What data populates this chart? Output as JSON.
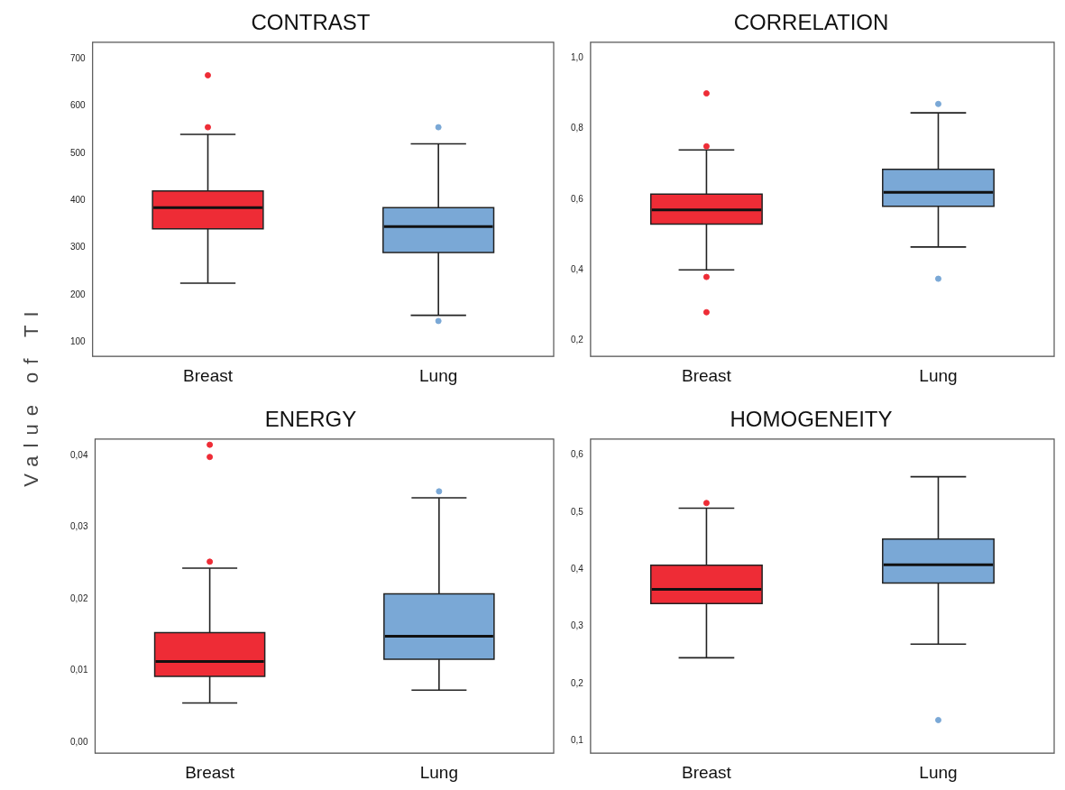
{
  "chart_data": [
    {
      "type": "box",
      "title": "CONTRAST",
      "ylabel": "Value of TI",
      "categories": [
        "Breast",
        "Lung"
      ],
      "colors": [
        "#ee2c36",
        "#7aa8d6"
      ],
      "ylim": [
        70,
        735
      ],
      "yticks": [
        100,
        200,
        300,
        400,
        500,
        600,
        700
      ],
      "grid": false,
      "legend": false,
      "boxes": [
        {
          "low": 225,
          "q1": 340,
          "median": 385,
          "q3": 420,
          "high": 540,
          "outliers": [
            555,
            665
          ]
        },
        {
          "low": 157,
          "q1": 290,
          "median": 345,
          "q3": 385,
          "high": 520,
          "outliers": [
            555,
            145
          ]
        }
      ]
    },
    {
      "type": "box",
      "title": "CORRELATION",
      "categories": [
        "Breast",
        "Lung"
      ],
      "colors": [
        "#ee2c36",
        "#7aa8d6"
      ],
      "ylim": [
        0.155,
        1.045
      ],
      "yticks": [
        {
          "value": 0.2,
          "label": "0,2"
        },
        {
          "value": 0.4,
          "label": "0,4"
        },
        {
          "value": 0.6,
          "label": "0,6"
        },
        {
          "value": 0.8,
          "label": "0,8"
        },
        {
          "value": 1.0,
          "label": "1,0"
        }
      ],
      "grid": false,
      "legend": false,
      "boxes": [
        {
          "low": 0.4,
          "q1": 0.53,
          "median": 0.57,
          "q3": 0.615,
          "high": 0.74,
          "outliers": [
            0.9,
            0.75,
            0.38,
            0.28
          ]
        },
        {
          "low": 0.465,
          "q1": 0.58,
          "median": 0.62,
          "q3": 0.685,
          "high": 0.845,
          "outliers": [
            0.87,
            0.375
          ]
        }
      ]
    },
    {
      "type": "box",
      "title": "ENERGY",
      "categories": [
        "Breast",
        "Lung"
      ],
      "colors": [
        "#ee2c36",
        "#7aa8d6"
      ],
      "ylim": [
        -0.0015,
        0.0423
      ],
      "yticks": [
        {
          "value": 0,
          "label": "0,00"
        },
        {
          "value": 0.01,
          "label": "0,01"
        },
        {
          "value": 0.02,
          "label": "0,02"
        },
        {
          "value": 0.03,
          "label": "0,03"
        },
        {
          "value": 0.04,
          "label": "0,04"
        }
      ],
      "grid": false,
      "legend": false,
      "boxes": [
        {
          "low": 0.0055,
          "q1": 0.0092,
          "median": 0.0113,
          "q3": 0.0153,
          "high": 0.0243,
          "outliers": [
            0.0415,
            0.0398,
            0.0252
          ]
        },
        {
          "low": 0.0073,
          "q1": 0.0116,
          "median": 0.0148,
          "q3": 0.0207,
          "high": 0.0341,
          "outliers": [
            0.035
          ]
        }
      ]
    },
    {
      "type": "box",
      "title": "HOMOGENEITY",
      "categories": [
        "Breast",
        "Lung"
      ],
      "colors": [
        "#ee2c36",
        "#7aa8d6"
      ],
      "ylim": [
        0.078,
        0.628
      ],
      "yticks": [
        {
          "value": 0.1,
          "label": "0,1"
        },
        {
          "value": 0.2,
          "label": "0,2"
        },
        {
          "value": 0.3,
          "label": "0,3"
        },
        {
          "value": 0.4,
          "label": "0,4"
        },
        {
          "value": 0.5,
          "label": "0,5"
        },
        {
          "value": 0.6,
          "label": "0,6"
        }
      ],
      "grid": false,
      "legend": false,
      "boxes": [
        {
          "low": 0.245,
          "q1": 0.34,
          "median": 0.365,
          "q3": 0.407,
          "high": 0.507,
          "outliers": [
            0.516
          ]
        },
        {
          "low": 0.269,
          "q1": 0.376,
          "median": 0.408,
          "q3": 0.453,
          "high": 0.562,
          "outliers": [
            0.136
          ]
        }
      ]
    }
  ]
}
